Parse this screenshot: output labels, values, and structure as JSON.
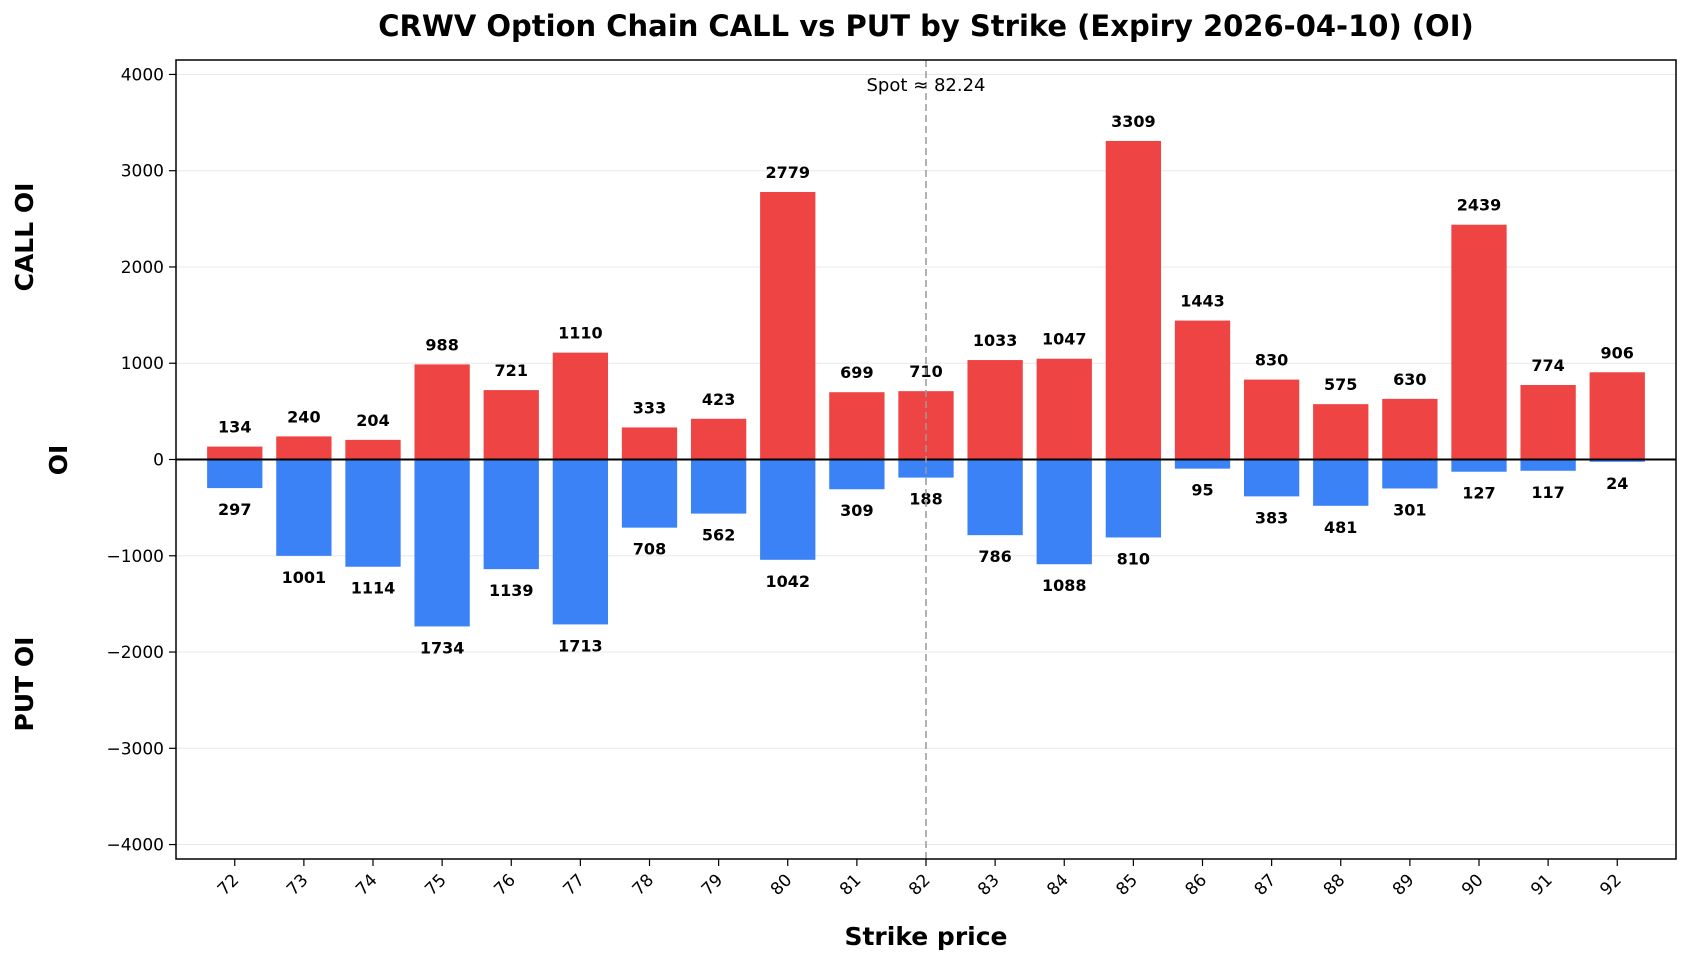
{
  "chart_data": {
    "type": "bar",
    "title": "CRWV Option Chain CALL vs PUT by Strike (Expiry 2026-04-10) (OI)",
    "xlabel": "Strike price",
    "ylabel": "OI",
    "ylabel_top": "CALL OI",
    "ylabel_bottom": "PUT OI",
    "ylim": [
      -4150,
      4150
    ],
    "yticks": [
      4000,
      3000,
      2000,
      1000,
      0,
      -1000,
      -2000,
      -3000,
      -4000
    ],
    "ytick_labels": [
      "4000",
      "3000",
      "2000",
      "1000",
      "0",
      "−1000",
      "−2000",
      "−3000",
      "−4000"
    ],
    "grid": true,
    "categories": [
      "72",
      "73",
      "74",
      "75",
      "76",
      "77",
      "78",
      "79",
      "80",
      "81",
      "82",
      "83",
      "84",
      "85",
      "86",
      "87",
      "88",
      "89",
      "90",
      "91",
      "92"
    ],
    "series": [
      {
        "key": "call",
        "color": "#ef4444",
        "values": [
          134,
          240,
          204,
          988,
          721,
          1110,
          333,
          423,
          2779,
          699,
          710,
          1033,
          1047,
          3309,
          1443,
          830,
          575,
          630,
          2439,
          774,
          906
        ]
      },
      {
        "key": "put",
        "color": "#3b82f6",
        "values": [
          297,
          1001,
          1114,
          1734,
          1139,
          1713,
          708,
          562,
          1042,
          309,
          188,
          786,
          1088,
          810,
          95,
          383,
          481,
          301,
          127,
          117,
          24
        ]
      }
    ],
    "spot": {
      "value": 82.24,
      "label": "Spot ≈ 82.24"
    }
  }
}
